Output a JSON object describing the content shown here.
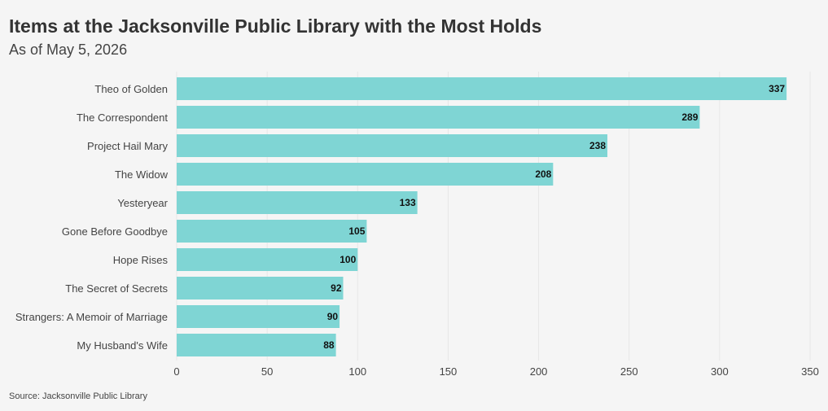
{
  "header": {
    "title": "Items at the Jacksonville Public Library with the Most Holds",
    "subtitle": "As of May 5, 2026"
  },
  "footer": {
    "source": "Source: Jacksonville Public Library"
  },
  "colors": {
    "bar": "#7fd5d4",
    "background": "#f5f5f5",
    "grid": "#e6e6e6"
  },
  "chart_data": {
    "type": "bar",
    "orientation": "horizontal",
    "categories": [
      "Theo of Golden",
      "The Correspondent",
      "Project Hail Mary",
      "The Widow",
      "Yesteryear",
      "Gone Before Goodbye",
      "Hope Rises",
      "The Secret of Secrets",
      "Strangers: A Memoir of Marriage",
      "My Husband's Wife"
    ],
    "values": [
      337,
      289,
      238,
      208,
      133,
      105,
      100,
      92,
      90,
      88
    ],
    "xlim": [
      0,
      350
    ],
    "xticks": [
      0,
      50,
      100,
      150,
      200,
      250,
      300,
      350
    ],
    "grid": "vertical",
    "data_labels": "inside-end"
  }
}
